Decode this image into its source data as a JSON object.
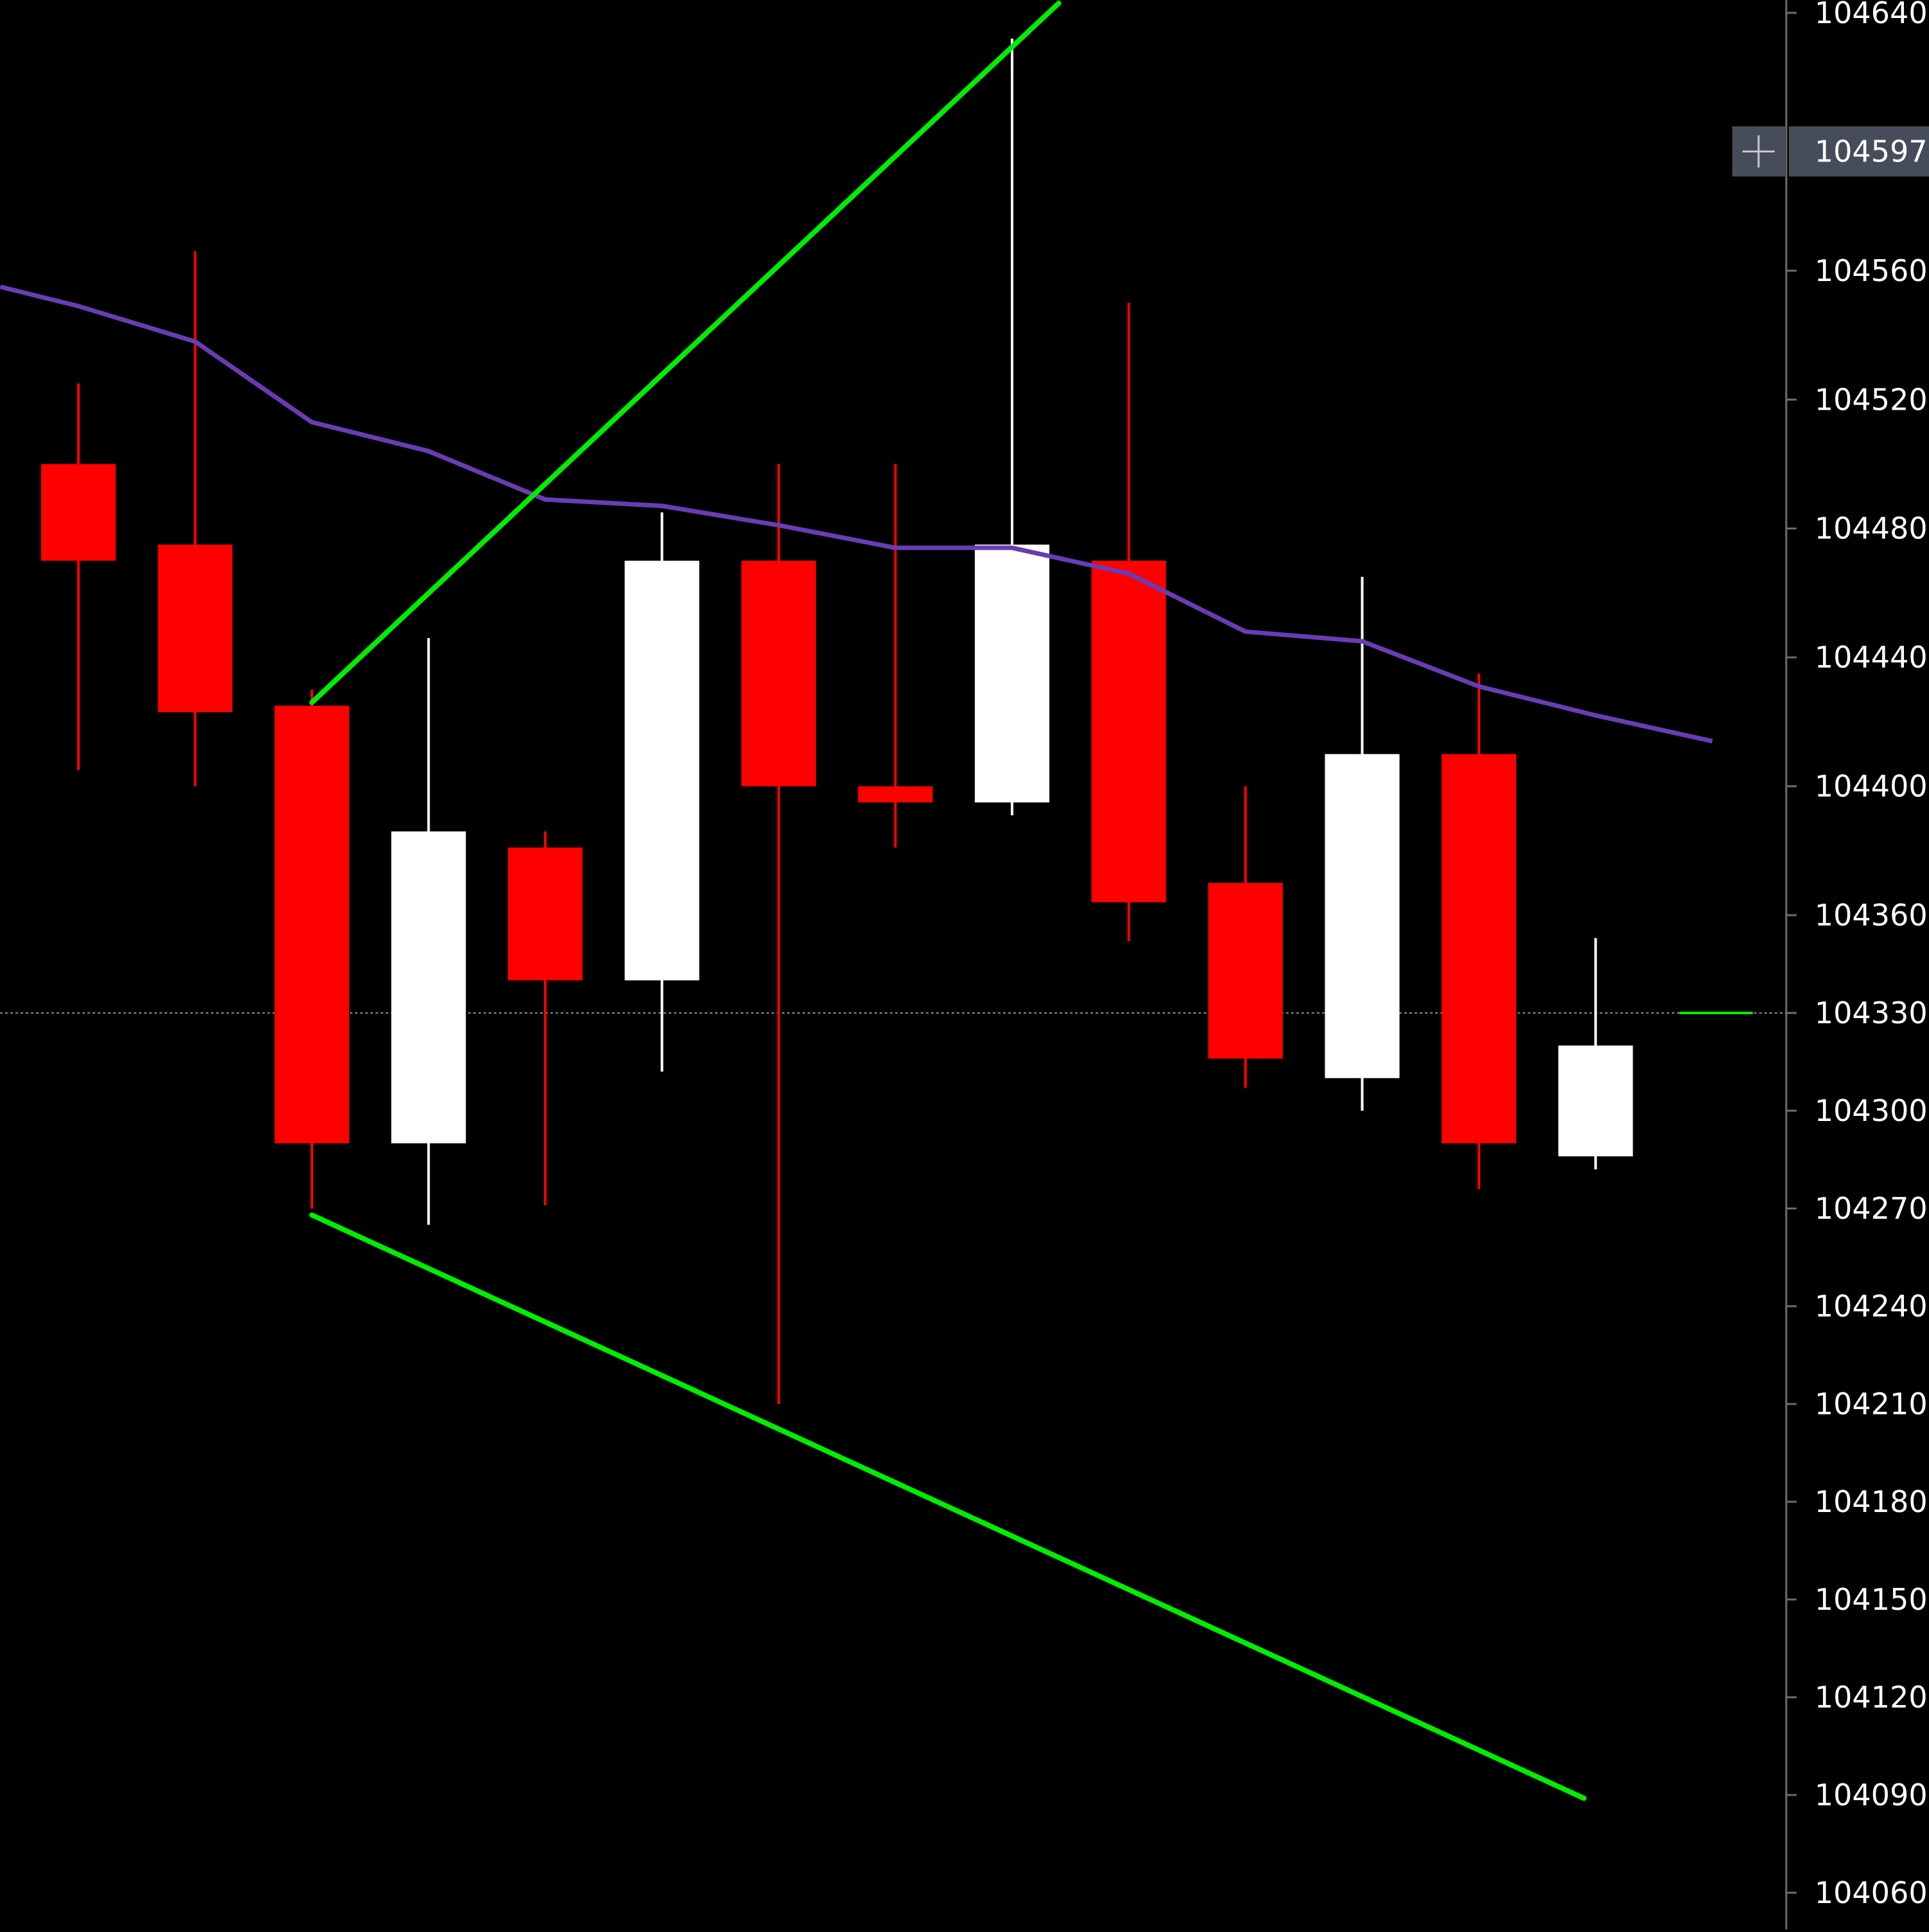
{
  "colors": {
    "background": "#000000",
    "bull": "#ffffff",
    "bear": "#ff0000",
    "trendline": "#00ee00",
    "moving_average": "#6a3cb4",
    "axis_line": "#6e6e6e",
    "axis_text": "#ffffff",
    "crosshair_line": "#8a8a8a",
    "crosshair_label_bg": "#464c5a",
    "current_price_marker": "#00ee00"
  },
  "price_axis": {
    "tick_labels": [
      "104640.",
      "104560.",
      "104520.",
      "104480.",
      "104440.",
      "104400.",
      "104360.",
      "104330.",
      "104300.",
      "104270.",
      "104240.",
      "104210.",
      "104180.",
      "104150.",
      "104120.",
      "104090.",
      "104060."
    ],
    "crosshair_label": "104597.",
    "crosshair_icon": "plus-icon"
  },
  "chart_data": {
    "type": "candlestick",
    "y_axis": {
      "ticks": [
        104640,
        104560,
        104520,
        104480,
        104440,
        104400,
        104360,
        104330,
        104300,
        104270,
        104240,
        104210,
        104180,
        104150,
        104120,
        104090,
        104060
      ],
      "ylim": [
        104055,
        104643
      ],
      "scale": "piecewise-linear (spacing per 40 above 104360, per 30 below)"
    },
    "crosshair_price": 104597,
    "horizontal_marker_price": 104330,
    "candles": [
      {
        "open": 104500,
        "high": 104525,
        "low": 104405,
        "close": 104470
      },
      {
        "open": 104475,
        "high": 104566,
        "low": 104400,
        "close": 104423
      },
      {
        "open": 104425,
        "high": 104430,
        "low": 104270,
        "close": 104290
      },
      {
        "open": 104290,
        "high": 104446,
        "low": 104265,
        "close": 104386
      },
      {
        "open": 104381,
        "high": 104386,
        "low": 104271,
        "close": 104340
      },
      {
        "open": 104340,
        "high": 104485,
        "low": 104312,
        "close": 104470
      },
      {
        "open": 104470,
        "high": 104500,
        "low": 104210,
        "close": 104400
      },
      {
        "open": 104400,
        "high": 104500,
        "low": 104381,
        "close": 104395
      },
      {
        "open": 104395,
        "high": 104632,
        "low": 104391,
        "close": 104475
      },
      {
        "open": 104470,
        "high": 104550,
        "low": 104352,
        "close": 104364
      },
      {
        "open": 104370,
        "high": 104400,
        "low": 104307,
        "close": 104316
      },
      {
        "open": 104310,
        "high": 104465,
        "low": 104300,
        "close": 104410
      },
      {
        "open": 104410,
        "high": 104435,
        "low": 104276,
        "close": 104290
      },
      {
        "open": 104286,
        "high": 104353,
        "low": 104282,
        "close": 104320
      }
    ],
    "moving_average": {
      "x_index": [
        -0.67,
        0,
        1,
        2,
        3,
        4,
        5,
        6,
        7,
        8,
        9,
        10,
        11,
        12,
        13,
        14
      ],
      "values": [
        104555,
        104549,
        104538,
        104513,
        104504,
        104489,
        104487,
        104481,
        104474,
        104474,
        104466,
        104448,
        104445,
        104431,
        104422,
        104414
      ]
    },
    "trendlines": [
      {
        "x_index": [
          2,
          8.4
        ],
        "values": [
          104426,
          104643
        ]
      },
      {
        "x_index": [
          2,
          12.9
        ],
        "values": [
          104268,
          104089
        ]
      }
    ]
  }
}
